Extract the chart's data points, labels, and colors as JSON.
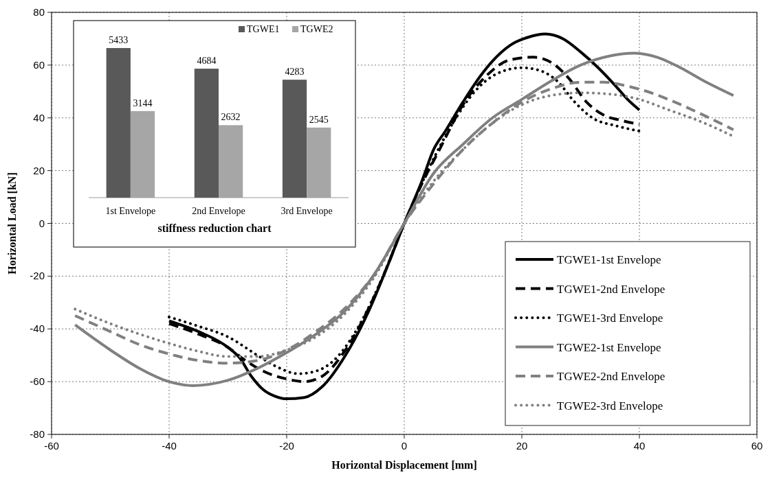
{
  "chart_data": [
    {
      "type": "line",
      "xlabel": "Horizontal Displacement [mm]",
      "ylabel": "Horizontal Load [kN]",
      "xlim": [
        -60,
        60
      ],
      "xticks": [
        -60,
        -40,
        -20,
        0,
        20,
        40,
        60
      ],
      "ylim": [
        -80,
        80
      ],
      "yticks": [
        -80,
        -60,
        -40,
        -20,
        0,
        20,
        40,
        60,
        80
      ],
      "grid": true,
      "legend": "bottom right",
      "series": [
        {
          "name": "TGWE1-1st Envelope",
          "color": "#000000",
          "line_style": "solid",
          "x": [
            -40,
            -35,
            -30,
            -28,
            -26,
            -24,
            -22,
            -20,
            -17,
            -14,
            -10,
            -6,
            -3,
            0,
            3,
            5,
            7,
            10,
            13,
            15,
            18,
            21,
            24,
            27,
            30,
            33,
            36,
            38,
            40
          ],
          "values": [
            -37,
            -41,
            -47,
            -51,
            -58,
            -63,
            -65.5,
            -66.5,
            -66,
            -62,
            -50,
            -33,
            -17,
            0,
            16,
            28,
            35,
            46,
            56,
            61.5,
            67.5,
            70.5,
            71.8,
            70,
            65,
            59,
            52,
            47,
            43
          ]
        },
        {
          "name": "TGWE1-2nd Envelope",
          "color": "#000000",
          "line_style": "dashed",
          "x": [
            -40,
            -35,
            -30,
            -27,
            -24,
            -20,
            -17,
            -14,
            -10,
            -6,
            -3,
            0,
            3,
            6,
            10,
            14,
            18,
            22,
            25,
            28,
            31,
            34,
            37,
            40
          ],
          "values": [
            -38,
            -42,
            -47,
            -52,
            -56,
            -59,
            -60,
            -58,
            -48,
            -32,
            -17,
            0,
            15,
            28,
            45,
            56,
            62,
            63,
            61,
            55,
            46,
            41,
            39,
            37.5
          ]
        },
        {
          "name": "TGWE1-3rd Envelope",
          "color": "#000000",
          "line_style": "dotted",
          "x": [
            -40,
            -35,
            -30,
            -25,
            -22,
            -18,
            -15,
            -12,
            -8,
            -4,
            0,
            4,
            8,
            12,
            16,
            20,
            23,
            26,
            29,
            32,
            36,
            40
          ],
          "values": [
            -35.5,
            -39,
            -43,
            -50,
            -54,
            -57,
            -56,
            -52,
            -40,
            -22,
            0,
            20,
            37,
            50,
            57,
            59,
            58,
            54,
            46,
            40,
            37,
            35
          ]
        },
        {
          "name": "TGWE2-1st Envelope",
          "color": "#808080",
          "line_style": "solid",
          "x": [
            -56,
            -50,
            -45,
            -40,
            -36,
            -30,
            -25,
            -20,
            -15,
            -10,
            -5,
            0,
            5,
            10,
            15,
            20,
            25,
            30,
            35,
            39,
            43,
            47,
            51,
            56
          ],
          "values": [
            -38.5,
            -48,
            -55,
            -60,
            -61.5,
            -59.5,
            -55,
            -49,
            -42,
            -33,
            -19,
            0,
            19,
            30,
            40,
            47,
            54,
            60,
            63.5,
            64.5,
            63,
            59,
            54,
            48.5
          ]
        },
        {
          "name": "TGWE2-2nd Envelope",
          "color": "#808080",
          "line_style": "dashed",
          "x": [
            -56,
            -50,
            -45,
            -40,
            -35,
            -30,
            -25,
            -20,
            -15,
            -10,
            -5,
            0,
            5,
            10,
            15,
            20,
            25,
            30,
            34,
            38,
            42,
            46,
            50,
            56
          ],
          "values": [
            -35,
            -41,
            -46,
            -49.5,
            -52,
            -53,
            -52,
            -48,
            -41,
            -32,
            -19,
            0,
            15,
            28,
            38,
            46,
            51,
            53.5,
            53.5,
            52,
            49.5,
            46,
            42,
            35.5
          ]
        },
        {
          "name": "TGWE2-3rd Envelope",
          "color": "#808080",
          "line_style": "dotted",
          "x": [
            -56,
            -50,
            -45,
            -40,
            -35,
            -30,
            -25,
            -20,
            -15,
            -10,
            -5,
            0,
            5,
            10,
            15,
            20,
            25,
            30,
            35,
            40,
            45,
            50,
            56
          ],
          "values": [
            -32.5,
            -38,
            -42,
            -45.5,
            -48.5,
            -50.5,
            -50.5,
            -48,
            -43,
            -34,
            -20,
            0,
            16,
            28,
            38,
            45,
            48.5,
            49.5,
            49,
            47,
            43,
            39,
            33
          ]
        }
      ]
    },
    {
      "type": "bar",
      "xlabel": "stiffness reduction chart",
      "categories": [
        "1st Envelope",
        "2nd Envelope",
        "3rd Envelope"
      ],
      "data_labels": true,
      "legend": "top right",
      "series": [
        {
          "name": "TGWE1",
          "color": "#595959",
          "values": [
            5433,
            4684,
            4283
          ]
        },
        {
          "name": "TGWE2",
          "color": "#a6a6a6",
          "values": [
            3144,
            2632,
            2545
          ]
        }
      ]
    }
  ]
}
